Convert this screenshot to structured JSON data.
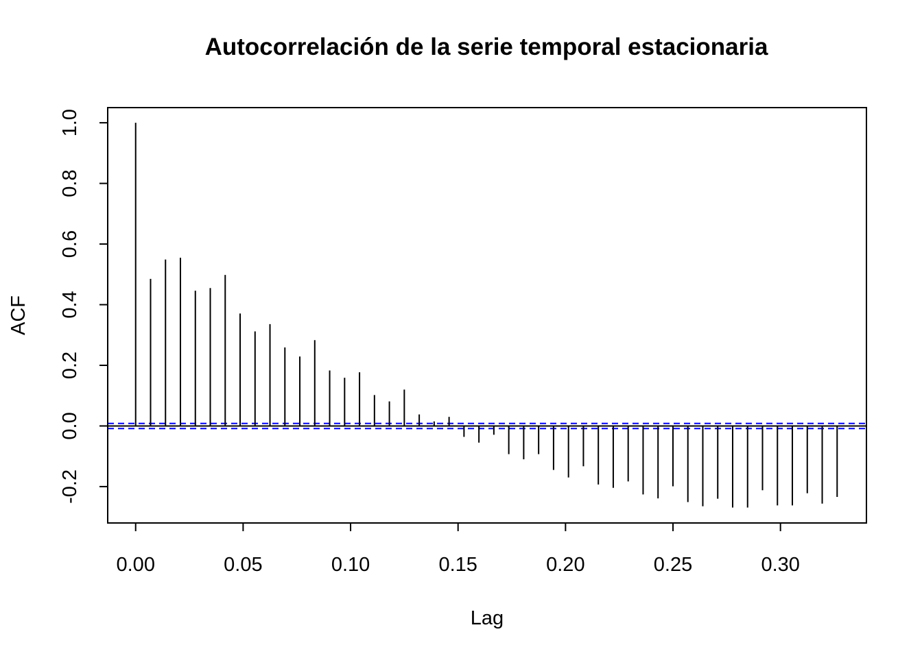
{
  "chart_data": {
    "type": "bar",
    "subtype": "acf-spikes",
    "title": "Autocorrelación de la serie temporal estacionaria",
    "xlabel": "Lag",
    "ylabel": "ACF",
    "xlim": [
      -0.013,
      0.34
    ],
    "ylim": [
      -0.32,
      1.05
    ],
    "x_ticks": [
      0.0,
      0.05,
      0.1,
      0.15,
      0.2,
      0.25,
      0.3
    ],
    "x_tick_labels": [
      "0.00",
      "0.05",
      "0.10",
      "0.15",
      "0.20",
      "0.25",
      "0.30"
    ],
    "y_ticks": [
      -0.2,
      0.0,
      0.2,
      0.4,
      0.6,
      0.8,
      1.0
    ],
    "y_tick_labels": [
      "-0.2",
      "0.0",
      "0.2",
      "0.4",
      "0.6",
      "0.8",
      "1.0"
    ],
    "lag_step": 0.006944,
    "values": [
      1.0,
      0.485,
      0.549,
      0.555,
      0.446,
      0.455,
      0.498,
      0.371,
      0.312,
      0.336,
      0.259,
      0.229,
      0.283,
      0.183,
      0.159,
      0.177,
      0.102,
      0.081,
      0.12,
      0.038,
      0.015,
      0.03,
      -0.036,
      -0.055,
      -0.029,
      -0.093,
      -0.11,
      -0.093,
      -0.145,
      -0.17,
      -0.133,
      -0.193,
      -0.204,
      -0.183,
      -0.226,
      -0.239,
      -0.199,
      -0.251,
      -0.265,
      -0.24,
      -0.269,
      -0.269,
      -0.212,
      -0.262,
      -0.262,
      -0.222,
      -0.256,
      -0.234
    ],
    "confidence_bound": 0.0085,
    "grid": false,
    "colors": {
      "spikes": "#000000",
      "confidence": "#0000ff",
      "zero_line": "#000000",
      "frame": "#000000"
    }
  }
}
